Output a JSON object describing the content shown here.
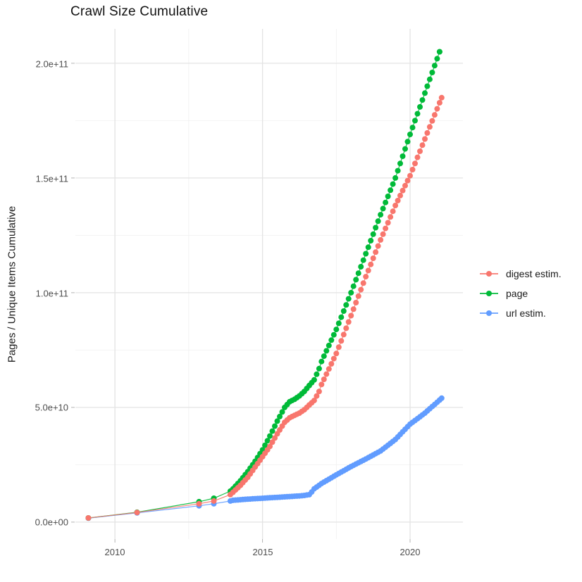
{
  "title": "Crawl Size Cumulative",
  "axes": {
    "y_label": "Pages / Unique Items Cumulative",
    "y_ticks": [
      "0.0e+00",
      "5.0e+10",
      "1.0e+11",
      "1.5e+11",
      "2.0e+11"
    ],
    "x_ticks": [
      "2010",
      "2015",
      "2020"
    ]
  },
  "legend": {
    "items": [
      {
        "label": "digest estim.",
        "color": "#F8766D"
      },
      {
        "label": "page",
        "color": "#00BA38"
      },
      {
        "label": "url estim.",
        "color": "#619CFF"
      }
    ]
  },
  "chart_data": {
    "type": "scatter",
    "title": "Crawl Size Cumulative",
    "xlabel": "",
    "ylabel": "Pages / Unique Items Cumulative",
    "x_domain_years": [
      2008.66,
      2021.79
    ],
    "y_domain": [
      -7400000000.0,
      215000000000.0
    ],
    "x_tick_years": [
      2010,
      2015,
      2020
    ],
    "y_tick_values": [
      0,
      50000000000.0,
      100000000000.0,
      150000000000.0,
      200000000000.0
    ],
    "grid": "major+minor",
    "legend_position": "right",
    "dense_from_year": 2014.0,
    "point_interval_years_dense": 0.08333,
    "series": [
      {
        "name": "digest estim.",
        "color": "#F8766D",
        "points": [
          [
            2009.1,
            1800000000.0
          ],
          [
            2010.75,
            4200000000.0
          ],
          [
            2012.85,
            8000000000.0
          ],
          [
            2013.35,
            9200000000.0
          ],
          [
            2013.91,
            12000000000.0
          ],
          [
            2014.0,
            13000000000.0
          ],
          [
            2014.25,
            16000000000.0
          ],
          [
            2014.5,
            19500000000.0
          ],
          [
            2014.75,
            24000000000.0
          ],
          [
            2015.0,
            28500000000.0
          ],
          [
            2015.25,
            33000000000.0
          ],
          [
            2015.5,
            38500000000.0
          ],
          [
            2015.75,
            43500000000.0
          ],
          [
            2015.92,
            45500000000.0
          ],
          [
            2016.08,
            46500000000.0
          ],
          [
            2016.25,
            47500000000.0
          ],
          [
            2016.42,
            49000000000.0
          ],
          [
            2016.58,
            51000000000.0
          ],
          [
            2016.75,
            53000000000.0
          ],
          [
            2016.92,
            57000000000.0
          ],
          [
            2017.0,
            60000000000.0
          ],
          [
            2017.5,
            73500000000.0
          ],
          [
            2018.0,
            90000000000.0
          ],
          [
            2018.5,
            107000000000.0
          ],
          [
            2019.0,
            123000000000.0
          ],
          [
            2019.5,
            138000000000.0
          ],
          [
            2020.0,
            151000000000.0
          ],
          [
            2020.5,
            167000000000.0
          ],
          [
            2021.07,
            185000000000.0
          ]
        ]
      },
      {
        "name": "page",
        "color": "#00BA38",
        "points": [
          [
            2009.1,
            1800000000.0
          ],
          [
            2010.75,
            4300000000.0
          ],
          [
            2012.85,
            8900000000.0
          ],
          [
            2013.35,
            10400000000.0
          ],
          [
            2013.91,
            13500000000.0
          ],
          [
            2014.0,
            14500000000.0
          ],
          [
            2014.25,
            18000000000.0
          ],
          [
            2014.5,
            22000000000.0
          ],
          [
            2014.75,
            26500000000.0
          ],
          [
            2015.0,
            31500000000.0
          ],
          [
            2015.25,
            37500000000.0
          ],
          [
            2015.5,
            44000000000.0
          ],
          [
            2015.75,
            50000000000.0
          ],
          [
            2015.92,
            52500000000.0
          ],
          [
            2016.08,
            53500000000.0
          ],
          [
            2016.25,
            55000000000.0
          ],
          [
            2016.42,
            57000000000.0
          ],
          [
            2016.58,
            59500000000.0
          ],
          [
            2016.75,
            62000000000.0
          ],
          [
            2016.92,
            67000000000.0
          ],
          [
            2017.0,
            70000000000.0
          ],
          [
            2017.5,
            84000000000.0
          ],
          [
            2018.0,
            100000000000.0
          ],
          [
            2018.5,
            117000000000.0
          ],
          [
            2019.0,
            134000000000.0
          ],
          [
            2019.5,
            150000000000.0
          ],
          [
            2020.0,
            169000000000.0
          ],
          [
            2020.5,
            187000000000.0
          ],
          [
            2021.0,
            205000000000.0
          ]
        ]
      },
      {
        "name": "url estim.",
        "color": "#619CFF",
        "points": [
          [
            2009.1,
            1700000000.0
          ],
          [
            2010.75,
            4000000000.0
          ],
          [
            2012.85,
            7100000000.0
          ],
          [
            2013.35,
            8000000000.0
          ],
          [
            2013.91,
            9200000000.0
          ],
          [
            2014.0,
            9500000000.0
          ],
          [
            2014.5,
            10000000000.0
          ],
          [
            2015.0,
            10400000000.0
          ],
          [
            2015.5,
            10800000000.0
          ],
          [
            2016.0,
            11200000000.0
          ],
          [
            2016.35,
            11500000000.0
          ],
          [
            2016.6,
            12000000000.0
          ],
          [
            2016.75,
            14500000000.0
          ],
          [
            2017.0,
            16800000000.0
          ],
          [
            2017.5,
            20600000000.0
          ],
          [
            2018.0,
            24200000000.0
          ],
          [
            2018.5,
            27500000000.0
          ],
          [
            2019.0,
            31000000000.0
          ],
          [
            2019.5,
            36000000000.0
          ],
          [
            2020.0,
            42700000000.0
          ],
          [
            2020.5,
            47500000000.0
          ],
          [
            2021.07,
            54000000000.0
          ]
        ]
      }
    ]
  }
}
